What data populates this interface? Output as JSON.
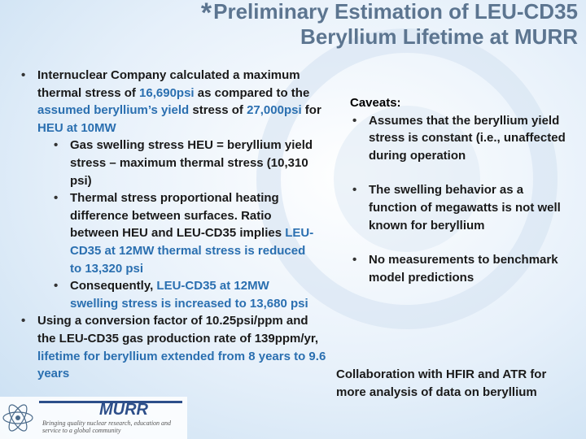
{
  "header": {
    "mark": "*",
    "title": "Preliminary Estimation of LEU-CD35 Beryllium Lifetime at MURR"
  },
  "left": {
    "items": [
      {
        "level": 1,
        "runs": [
          {
            "text": "Internuclear Company calculated a maximum thermal stress of ",
            "color": "#1a1a1a"
          },
          {
            "text": "16,690psi",
            "color": "#2a6fb0"
          },
          {
            "text": " as compared to the ",
            "color": "#1a1a1a"
          },
          {
            "text": "assumed beryllium’s yield",
            "color": "#2a6fb0"
          },
          {
            "text": " stress of ",
            "color": "#1a1a1a"
          },
          {
            "text": "27,000psi",
            "color": "#2a6fb0"
          },
          {
            "text": " for ",
            "color": "#1a1a1a"
          },
          {
            "text": "HEU at 10MW",
            "color": "#2a6fb0"
          }
        ]
      },
      {
        "level": 2,
        "runs": [
          {
            "text": "Gas swelling stress HEU = beryllium yield stress – maximum thermal stress (10,310 psi)",
            "color": "#1a1a1a"
          }
        ]
      },
      {
        "level": 2,
        "runs": [
          {
            "text": "Thermal stress proportional heating difference between surfaces. Ratio between HEU and LEU-CD35 implies ",
            "color": "#1a1a1a"
          },
          {
            "text": "LEU-CD35 at 12MW thermal stress is reduced to 13,320 psi",
            "color": "#2a6fb0"
          }
        ]
      },
      {
        "level": 2,
        "runs": [
          {
            "text": "Consequently, ",
            "color": "#1a1a1a"
          },
          {
            "text": "LEU-CD35 at 12MW swelling stress is increased to 13,680 psi",
            "color": "#2a6fb0"
          }
        ]
      },
      {
        "level": 1,
        "runs": [
          {
            "text": "Using a conversion factor of 10.25psi/ppm and the LEU-CD35 gas production rate of 139ppm/yr, ",
            "color": "#1a1a1a"
          },
          {
            "text": "lifetime for beryllium extended from 8 years to 9.6 years",
            "color": "#2a6fb0"
          }
        ]
      }
    ]
  },
  "caveats": {
    "heading": "Caveats:",
    "items": [
      "Assumes that the beryllium yield stress is constant (i.e., unaffected during operation",
      "The swelling behavior as a function of megawatts is not well known for beryllium",
      "No measurements to benchmark model predictions"
    ]
  },
  "collaboration": "Collaboration with HFIR and ATR for more analysis of data on beryllium",
  "logo": {
    "name": "MURR",
    "tagline": "Bringing quality nuclear research, education and service to a global community"
  }
}
